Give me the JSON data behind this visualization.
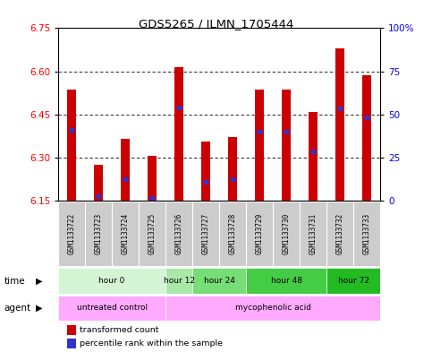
{
  "title": "GDS5265 / ILMN_1705444",
  "samples": [
    "GSM1133722",
    "GSM1133723",
    "GSM1133724",
    "GSM1133725",
    "GSM1133726",
    "GSM1133727",
    "GSM1133728",
    "GSM1133729",
    "GSM1133730",
    "GSM1133731",
    "GSM1133732",
    "GSM1133733"
  ],
  "bar_top": [
    6.535,
    6.275,
    6.365,
    6.305,
    6.615,
    6.355,
    6.37,
    6.535,
    6.535,
    6.46,
    6.68,
    6.585
  ],
  "bar_bottom": 6.15,
  "blue_marker": [
    6.395,
    6.165,
    6.225,
    6.16,
    6.475,
    6.215,
    6.225,
    6.39,
    6.39,
    6.32,
    6.47,
    6.44
  ],
  "ylim": [
    6.15,
    6.75
  ],
  "yticks_left": [
    6.15,
    6.3,
    6.45,
    6.6,
    6.75
  ],
  "yticks_right": [
    0,
    25,
    50,
    75,
    100
  ],
  "yticks_right_labels": [
    "0",
    "25",
    "50",
    "75",
    "100%"
  ],
  "bar_color": "#cc0000",
  "blue_color": "#3333cc",
  "time_groups": [
    {
      "label": "hour 0",
      "start": 0,
      "end": 3,
      "color": "#d4f5d4"
    },
    {
      "label": "hour 12",
      "start": 4,
      "end": 4,
      "color": "#aae8aa"
    },
    {
      "label": "hour 24",
      "start": 5,
      "end": 6,
      "color": "#77dd77"
    },
    {
      "label": "hour 48",
      "start": 7,
      "end": 9,
      "color": "#44cc44"
    },
    {
      "label": "hour 72",
      "start": 10,
      "end": 11,
      "color": "#22bb22"
    }
  ],
  "agent_groups": [
    {
      "label": "untreated control",
      "start": 0,
      "end": 3,
      "color": "#ffaaff"
    },
    {
      "label": "mycophenolic acid",
      "start": 4,
      "end": 11,
      "color": "#ffaaff"
    }
  ],
  "legend_tc": "transformed count",
  "legend_pr": "percentile rank within the sample",
  "sample_bg": "#cccccc",
  "plot_bg": "#ffffff"
}
